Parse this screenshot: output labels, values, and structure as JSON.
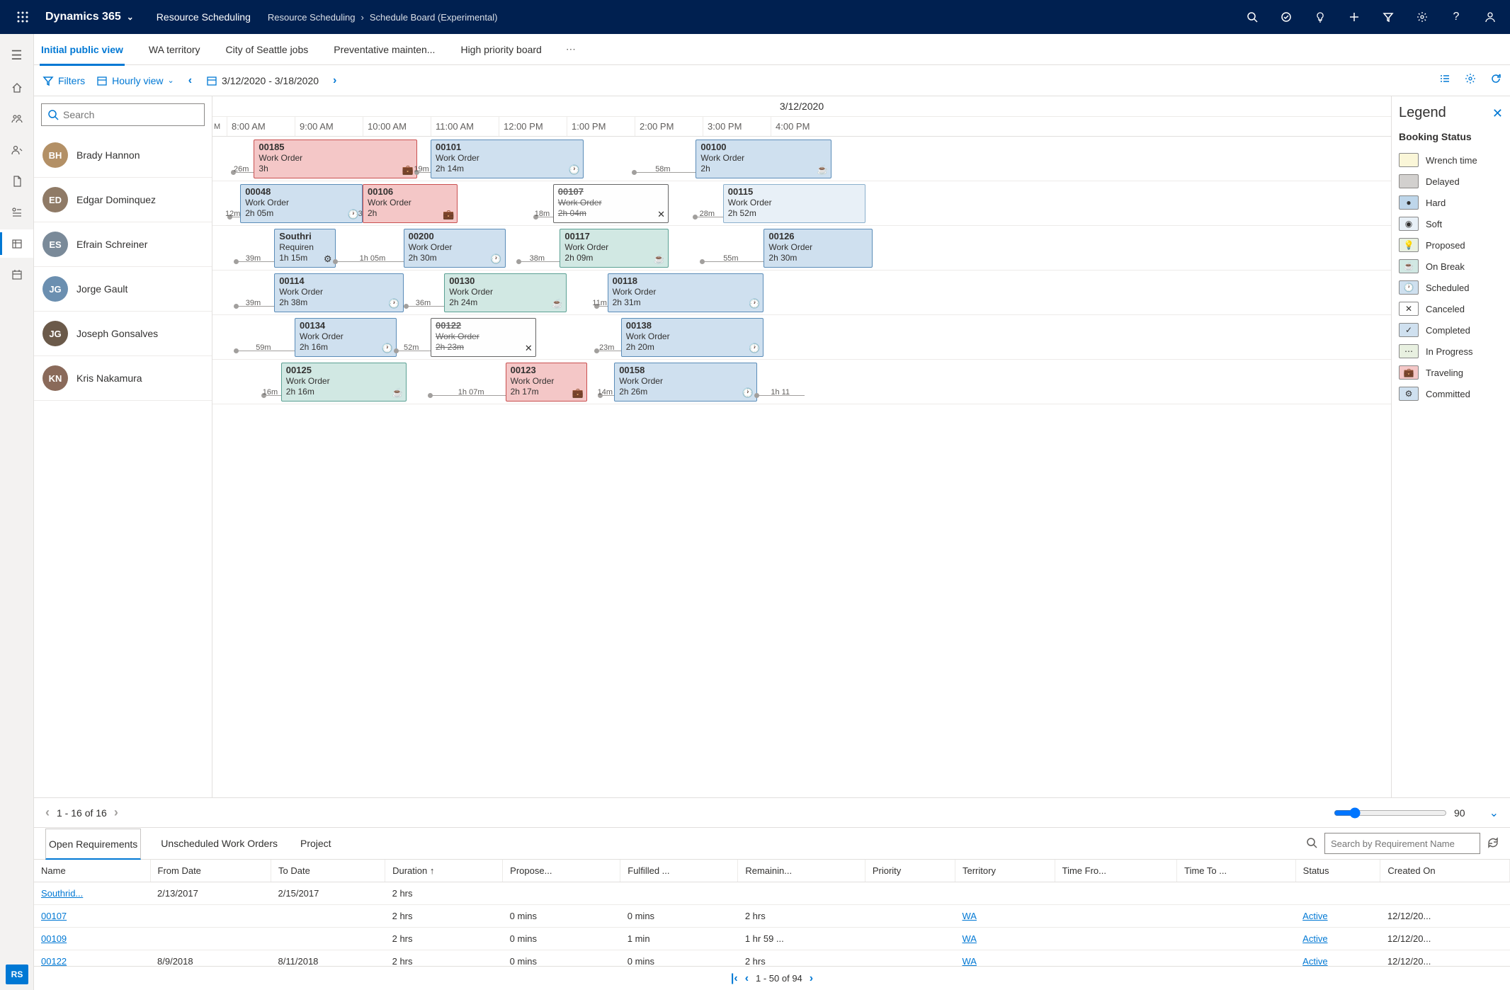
{
  "topbar": {
    "brand": "Dynamics 365",
    "module": "Resource Scheduling",
    "crumb1": "Resource Scheduling",
    "crumb2": "Schedule Board (Experimental)"
  },
  "tabs": [
    "Initial public view",
    "WA territory",
    "City of Seattle jobs",
    "Preventative mainten...",
    "High priority board"
  ],
  "activeTab": 0,
  "toolbar": {
    "filters": "Filters",
    "view": "Hourly view",
    "range": "3/12/2020 - 3/18/2020"
  },
  "ganttDate": "3/12/2020",
  "hoursFirst": "M",
  "hours": [
    "8:00 AM",
    "9:00 AM",
    "10:00 AM",
    "11:00 AM",
    "12:00 PM",
    "1:00 PM",
    "2:00 PM",
    "3:00 PM",
    "4:00 PM"
  ],
  "searchPlaceholder": "Search",
  "resources": [
    {
      "name": "Brady Hannon",
      "initials": "BH",
      "color": "#b39066"
    },
    {
      "name": "Edgar Dominquez",
      "initials": "ED",
      "color": "#8f7a66"
    },
    {
      "name": "Efrain Schreiner",
      "initials": "ES",
      "color": "#7a8a99"
    },
    {
      "name": "Jorge Gault",
      "initials": "JG",
      "color": "#6b8fb0"
    },
    {
      "name": "Joseph Gonsalves",
      "initials": "JG",
      "color": "#6b5a4a"
    },
    {
      "name": "Kris Nakamura",
      "initials": "KN",
      "color": "#8a6a5a"
    }
  ],
  "pxPerHour": 96,
  "blocks": [
    {
      "row": 0,
      "start": 8.4,
      "dur": 2.4,
      "id": "00185",
      "l2": "Work Order",
      "l3": "3h",
      "status": "travel",
      "icon": "briefcase",
      "travel": "26m",
      "travelStart": 8.1,
      "travelLen": 0.3
    },
    {
      "row": 0,
      "start": 11.0,
      "dur": 2.25,
      "id": "00101",
      "l2": "Work Order",
      "l3": "2h 14m",
      "status": "sched",
      "icon": "clock",
      "travel": "19m",
      "travelStart": 10.8,
      "travelLen": 0.2
    },
    {
      "row": 0,
      "start": 14.9,
      "dur": 2.0,
      "id": "00100",
      "l2": "Work Order",
      "l3": "2h",
      "status": "sched",
      "icon": "cup",
      "travel": "58m",
      "travelStart": 14.0,
      "travelLen": 0.9
    },
    {
      "row": 1,
      "start": 8.2,
      "dur": 1.8,
      "id": "00048",
      "l2": "Work Order",
      "l3": "2h 05m",
      "status": "sched",
      "icon": "clock",
      "travel": "12m",
      "travelStart": 8.05,
      "travelLen": 0.15
    },
    {
      "row": 1,
      "start": 10.0,
      "dur": 1.4,
      "id": "00106",
      "l2": "Work Order",
      "l3": "2h",
      "status": "travel",
      "icon": "briefcase",
      "travel": "36m",
      "travelStart": 10.07,
      "travelLen": 0.02
    },
    {
      "row": 1,
      "start": 12.8,
      "dur": 1.7,
      "id": "00107",
      "l2": "Work Order",
      "l3": "2h 04m",
      "status": "cancel",
      "icon": "x",
      "travel": "18m",
      "travelStart": 12.55,
      "travelLen": 0.25
    },
    {
      "row": 1,
      "start": 15.3,
      "dur": 2.1,
      "id": "00115",
      "l2": "Work Order",
      "l3": "2h 52m",
      "status": "soft",
      "icon": "",
      "travel": "28m",
      "travelStart": 14.9,
      "travelLen": 0.4
    },
    {
      "row": 2,
      "start": 8.7,
      "dur": 0.9,
      "id": "Southri",
      "l2": "Requiren",
      "l3": "1h 15m",
      "status": "sched",
      "icon": "gear",
      "travel": "39m",
      "travelStart": 8.15,
      "travelLen": 0.55
    },
    {
      "row": 2,
      "start": 10.6,
      "dur": 1.5,
      "id": "00200",
      "l2": "Work Order",
      "l3": "2h 30m",
      "status": "sched",
      "icon": "clock",
      "travel": "1h 05m",
      "travelStart": 9.6,
      "travelLen": 1.0
    },
    {
      "row": 2,
      "start": 12.9,
      "dur": 1.6,
      "id": "00117",
      "l2": "Work Order",
      "l3": "2h 09m",
      "status": "break",
      "icon": "cup",
      "travel": "38m",
      "travelStart": 12.3,
      "travelLen": 0.6
    },
    {
      "row": 2,
      "start": 15.9,
      "dur": 1.6,
      "id": "00126",
      "l2": "Work Order",
      "l3": "2h 30m",
      "status": "sched",
      "icon": "",
      "travel": "55m",
      "travelStart": 15.0,
      "travelLen": 0.9
    },
    {
      "row": 3,
      "start": 8.7,
      "dur": 1.9,
      "id": "00114",
      "l2": "Work Order",
      "l3": "2h 38m",
      "status": "sched",
      "icon": "clock",
      "travel": "39m",
      "travelStart": 8.15,
      "travelLen": 0.55
    },
    {
      "row": 3,
      "start": 11.2,
      "dur": 1.8,
      "id": "00130",
      "l2": "Work Order",
      "l3": "2h 24m",
      "status": "break",
      "icon": "cup",
      "travel": "36m",
      "travelStart": 10.65,
      "travelLen": 0.55
    },
    {
      "row": 3,
      "start": 13.6,
      "dur": 2.3,
      "id": "00118",
      "l2": "Work Order",
      "l3": "2h 31m",
      "status": "sched",
      "icon": "clock",
      "travel": "11m",
      "travelStart": 13.45,
      "travelLen": 0.15
    },
    {
      "row": 4,
      "start": 9.0,
      "dur": 1.5,
      "id": "00134",
      "l2": "Work Order",
      "l3": "2h 16m",
      "status": "sched",
      "icon": "clock",
      "travel": "59m",
      "travelStart": 8.15,
      "travelLen": 0.85
    },
    {
      "row": 4,
      "start": 11.0,
      "dur": 1.55,
      "id": "00122",
      "l2": "Work Order",
      "l3": "2h 23m",
      "status": "cancel",
      "icon": "x",
      "travel": "52m",
      "travelStart": 10.5,
      "travelLen": 0.5
    },
    {
      "row": 4,
      "start": 13.8,
      "dur": 2.1,
      "id": "00138",
      "l2": "Work Order",
      "l3": "2h 20m",
      "status": "sched",
      "icon": "clock",
      "travel": "23m",
      "travelStart": 13.45,
      "travelLen": 0.35
    },
    {
      "row": 5,
      "start": 8.8,
      "dur": 1.85,
      "id": "00125",
      "l2": "Work Order",
      "l3": "2h 16m",
      "status": "break",
      "icon": "cup",
      "travel": "16m",
      "travelStart": 8.55,
      "travelLen": 0.25
    },
    {
      "row": 5,
      "start": 12.1,
      "dur": 1.2,
      "id": "00123",
      "l2": "Work Order",
      "l3": "2h 17m",
      "status": "travel",
      "icon": "briefcase",
      "travel": "1h 07m",
      "travelStart": 11.0,
      "travelLen": 1.1
    },
    {
      "row": 5,
      "start": 13.7,
      "dur": 2.1,
      "id": "00158",
      "l2": "Work Order",
      "l3": "2h 26m",
      "status": "sched",
      "icon": "clock",
      "travel": "14m",
      "travelStart": 13.5,
      "travelLen": 0.2
    },
    {
      "row": 5,
      "start": 16.5,
      "dur": 0.5,
      "id": "",
      "l2": "",
      "l3": "",
      "status": "none",
      "icon": "",
      "travel": "1h 11",
      "travelStart": 15.8,
      "travelLen": 0.7,
      "hideBlock": true
    }
  ],
  "legend": {
    "title": "Legend",
    "section": "Booking Status",
    "items": [
      {
        "label": "Wrench time",
        "cls": "st-wrench",
        "icon": ""
      },
      {
        "label": "Delayed",
        "style": "background:#d2d0ce;border-color:#8a8886",
        "icon": ""
      },
      {
        "label": "Hard",
        "cls": "st-hard",
        "icon": "●"
      },
      {
        "label": "Soft",
        "cls": "st-soft",
        "icon": "◉"
      },
      {
        "label": "Proposed",
        "cls": "st-prop",
        "icon": "💡"
      },
      {
        "label": "On Break",
        "cls": "st-break",
        "icon": "☕"
      },
      {
        "label": "Scheduled",
        "cls": "st-sched",
        "icon": "🕐"
      },
      {
        "label": "Canceled",
        "cls": "st-cancel",
        "icon": "✕"
      },
      {
        "label": "Completed",
        "cls": "st-sched",
        "icon": "✓"
      },
      {
        "label": "In Progress",
        "cls": "st-prop",
        "icon": "⋯"
      },
      {
        "label": "Traveling",
        "cls": "st-travel",
        "icon": "💼"
      },
      {
        "label": "Committed",
        "cls": "st-sched",
        "icon": "⚙"
      }
    ]
  },
  "boardFooter": {
    "page": "1 - 16 of 16",
    "zoom": "90"
  },
  "bottomTabs": [
    "Open Requirements",
    "Unscheduled Work Orders",
    "Project"
  ],
  "bottomSearchPh": "Search by Requirement Name",
  "gridColumns": [
    "Name",
    "From Date",
    "To Date",
    "Duration ↑",
    "Propose...",
    "Fulfilled ...",
    "Remainin...",
    "Priority",
    "Territory",
    "Time Fro...",
    "Time To ...",
    "Status",
    "Created On"
  ],
  "gridRows": [
    {
      "name": "Southrid...",
      "from": "2/13/2017",
      "to": "2/15/2017",
      "dur": "2 hrs",
      "prop": "",
      "ful": "",
      "rem": "",
      "pri": "",
      "terr": "",
      "tf": "",
      "tt": "",
      "status": "",
      "created": ""
    },
    {
      "name": "00107",
      "from": "",
      "to": "",
      "dur": "2 hrs",
      "prop": "0 mins",
      "ful": "0 mins",
      "rem": "2 hrs",
      "pri": "",
      "terr": "WA",
      "tf": "",
      "tt": "",
      "status": "Active",
      "created": "12/12/20..."
    },
    {
      "name": "00109",
      "from": "",
      "to": "",
      "dur": "2 hrs",
      "prop": "0 mins",
      "ful": "1 min",
      "rem": "1 hr 59 ...",
      "pri": "",
      "terr": "WA",
      "tf": "",
      "tt": "",
      "status": "Active",
      "created": "12/12/20..."
    },
    {
      "name": "00122",
      "from": "8/9/2018",
      "to": "8/11/2018",
      "dur": "2 hrs",
      "prop": "0 mins",
      "ful": "0 mins",
      "rem": "2 hrs",
      "pri": "",
      "terr": "WA",
      "tf": "",
      "tt": "",
      "status": "Active",
      "created": "12/12/20..."
    }
  ],
  "bottomFooter": "1 - 50 of 94",
  "railBadge": "RS"
}
